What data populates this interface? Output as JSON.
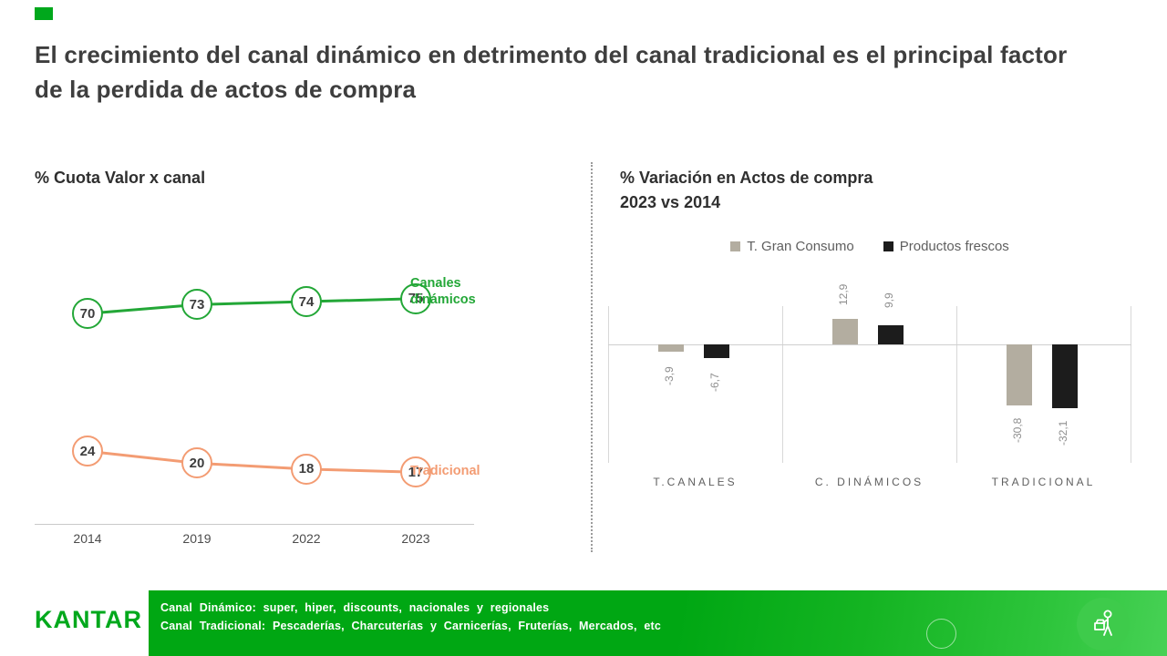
{
  "accent_color": "#00a81c",
  "title": "El crecimiento del canal dinámico en detrimento del canal tradicional es el principal factor de la perdida de actos de compra",
  "chart_data": [
    {
      "type": "line",
      "title": "% Cuota Valor x canal",
      "x": [
        "2014",
        "2019",
        "2022",
        "2023"
      ],
      "series": [
        {
          "name": "Canales dinámicos",
          "values": [
            70,
            73,
            74,
            75
          ],
          "color": "#23a737"
        },
        {
          "name": "Tradicional",
          "values": [
            24,
            20,
            18,
            17
          ],
          "color": "#f39c73"
        }
      ],
      "point_style": "circle-with-value",
      "ylim": [
        0,
        100
      ],
      "xlabel": "",
      "ylabel": ""
    },
    {
      "type": "bar",
      "title": "% Variación en Actos de compra",
      "subtitle": "2023 vs 2014",
      "categories": [
        "T.CANALES",
        "C. DINÁMICOS",
        "TRADICIONAL"
      ],
      "series": [
        {
          "name": "T. Gran Consumo",
          "color": "#b3ada0",
          "values": [
            -3.9,
            12.9,
            -30.8
          ],
          "labels": [
            "-3,9",
            "12,9",
            "-30,8"
          ]
        },
        {
          "name": "Productos frescos",
          "color": "#1c1c1c",
          "values": [
            -6.7,
            9.9,
            -32.1
          ],
          "labels": [
            "-6,7",
            "9,9",
            "-32,1"
          ]
        }
      ],
      "legend_position": "top",
      "grid": "group-dividers"
    }
  ],
  "footer": {
    "logo": "KANTAR",
    "logo_color": "#00a81c",
    "note1": "Canal Dinámico:  super,  hiper,  discounts,  nacionales  y regionales",
    "note2": "Canal Tradicional:  Pescaderías,  Charcuterías  y Carnicerías,  Fruterías,  Mercados,  etc"
  }
}
